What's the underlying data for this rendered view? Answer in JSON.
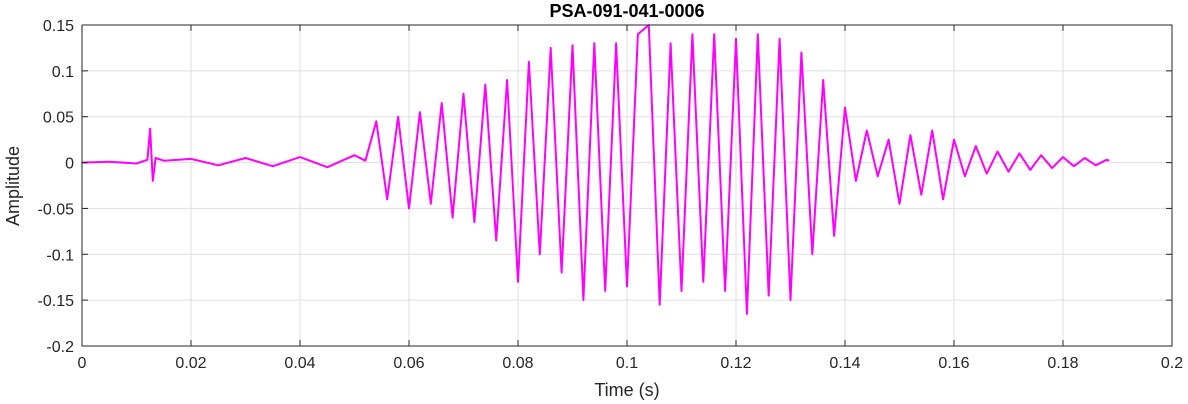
{
  "chart_data": {
    "type": "line",
    "title": "PSA-091-041-0006",
    "xlabel": "Time (s)",
    "ylabel": "Amplitude",
    "xlim": [
      0,
      0.2
    ],
    "ylim": [
      -0.2,
      0.15
    ],
    "xticks": [
      0,
      0.02,
      0.04,
      0.06,
      0.08,
      0.1,
      0.12,
      0.14,
      0.16,
      0.18,
      0.2
    ],
    "xtick_labels": [
      "0",
      "0.02",
      "0.04",
      "0.06",
      "0.08",
      "0.1",
      "0.12",
      "0.14",
      "0.16",
      "0.18",
      "0.2"
    ],
    "yticks": [
      -0.2,
      -0.15,
      -0.1,
      -0.05,
      0,
      0.05,
      0.1,
      0.15
    ],
    "ytick_labels": [
      "-0.2",
      "-0.15",
      "-0.1",
      "-0.05",
      "0",
      "0.05",
      "0.1",
      "0.15"
    ],
    "grid": true,
    "colors": {
      "series": "#ff00ff",
      "grid": "#dfdfdf",
      "axis": "#262626"
    },
    "series": [
      {
        "x": [
          0,
          0.005,
          0.01,
          0.012,
          0.0125,
          0.013,
          0.0135,
          0.015,
          0.02,
          0.025,
          0.03,
          0.035,
          0.04,
          0.045,
          0.05,
          0.052,
          0.054,
          0.056,
          0.058,
          0.06,
          0.062,
          0.064,
          0.066,
          0.068,
          0.07,
          0.072,
          0.074,
          0.076,
          0.078,
          0.08,
          0.082,
          0.084,
          0.086,
          0.088,
          0.09,
          0.092,
          0.094,
          0.096,
          0.098,
          0.1,
          0.102,
          0.104,
          0.106,
          0.108,
          0.11,
          0.112,
          0.114,
          0.116,
          0.118,
          0.12,
          0.122,
          0.124,
          0.126,
          0.128,
          0.13,
          0.132,
          0.134,
          0.136,
          0.138,
          0.14,
          0.142,
          0.144,
          0.146,
          0.148,
          0.15,
          0.152,
          0.154,
          0.156,
          0.158,
          0.16,
          0.162,
          0.164,
          0.166,
          0.168,
          0.17,
          0.172,
          0.174,
          0.176,
          0.178,
          0.18,
          0.182,
          0.184,
          0.186,
          0.188,
          0.1885
        ],
        "y": [
          0,
          0.001,
          -0.001,
          0.003,
          0.037,
          -0.02,
          0.005,
          0.002,
          0.004,
          -0.003,
          0.005,
          -0.004,
          0.006,
          -0.005,
          0.008,
          0.002,
          0.045,
          -0.04,
          0.05,
          -0.05,
          0.055,
          -0.045,
          0.065,
          -0.06,
          0.075,
          -0.065,
          0.085,
          -0.085,
          0.09,
          -0.13,
          0.11,
          -0.1,
          0.125,
          -0.12,
          0.128,
          -0.15,
          0.13,
          -0.14,
          0.13,
          -0.135,
          0.14,
          0.15,
          -0.155,
          0.13,
          -0.14,
          0.14,
          -0.13,
          0.14,
          -0.14,
          0.135,
          -0.165,
          0.14,
          -0.145,
          0.135,
          -0.15,
          0.12,
          -0.1,
          0.09,
          -0.08,
          0.06,
          -0.02,
          0.035,
          -0.015,
          0.025,
          -0.045,
          0.03,
          -0.035,
          0.035,
          -0.04,
          0.025,
          -0.015,
          0.018,
          -0.012,
          0.012,
          -0.01,
          0.01,
          -0.008,
          0.008,
          -0.006,
          0.006,
          -0.004,
          0.005,
          -0.003,
          0.003,
          0.002
        ]
      }
    ]
  }
}
